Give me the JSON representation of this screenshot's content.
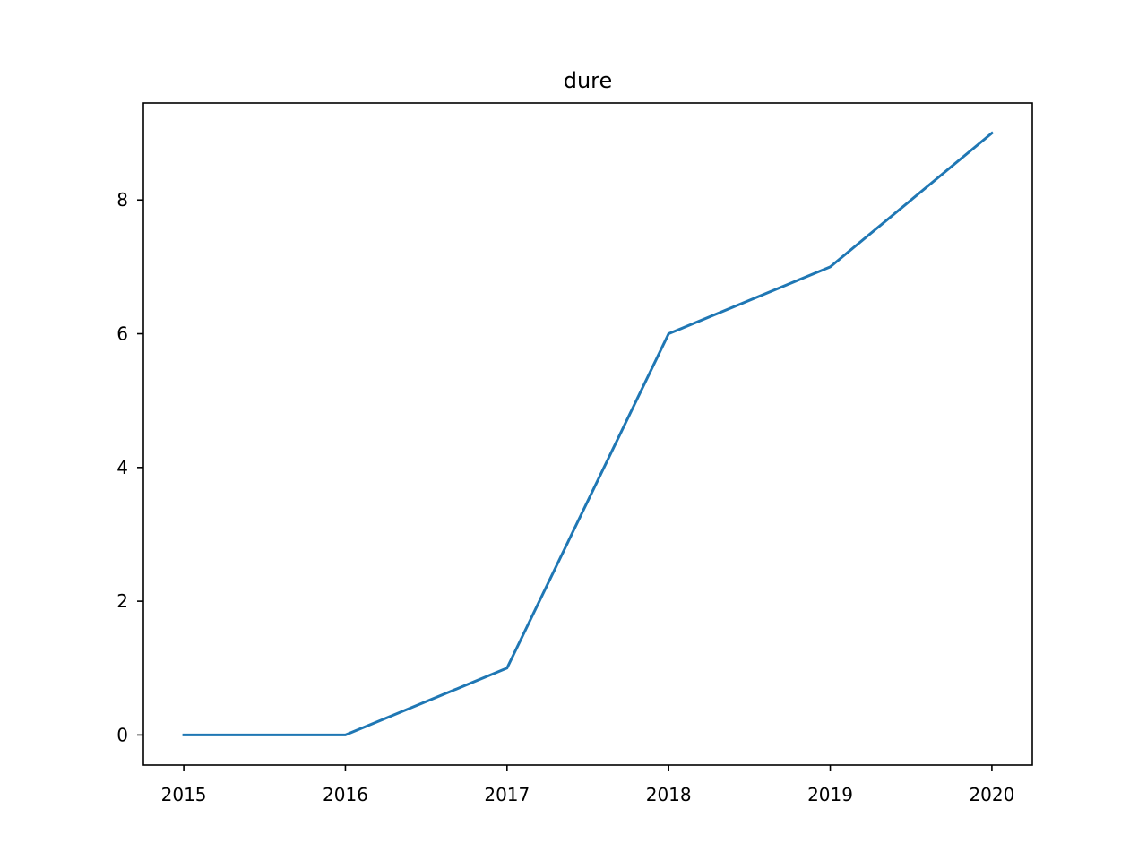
{
  "chart_data": {
    "type": "line",
    "title": "dure",
    "xlabel": "",
    "ylabel": "",
    "x": [
      2015,
      2016,
      2017,
      2018,
      2019,
      2020
    ],
    "x_tick_labels": [
      "2015",
      "2016",
      "2017",
      "2018",
      "2019",
      "2020"
    ],
    "y_ticks": [
      0,
      2,
      4,
      6,
      8
    ],
    "y_tick_labels": [
      "0",
      "2",
      "4",
      "6",
      "8"
    ],
    "xlim": [
      2014.75,
      2020.25
    ],
    "ylim": [
      -0.45,
      9.45
    ],
    "grid": false,
    "series": [
      {
        "values": [
          0,
          0,
          1,
          6,
          7,
          9
        ],
        "color": "#1f77b4"
      }
    ]
  }
}
